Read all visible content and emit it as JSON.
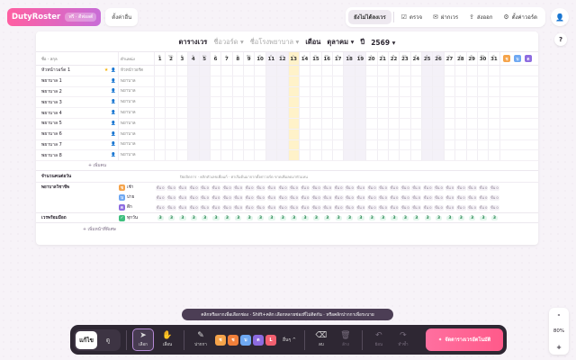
{
  "app": {
    "brand": "DutyRoster",
    "badge": "ฟรี · ดีฟอลต์",
    "settings": "ตั้งค่าอื่น"
  },
  "nav": [
    {
      "label": "ยังไม่ได้ลงเวร",
      "icon": "",
      "active": true
    },
    {
      "label": "ตรวจ",
      "icon": "check-icon"
    },
    {
      "label": "ฝากเวร",
      "icon": "inbox-icon"
    },
    {
      "label": "ส่งออก",
      "icon": "export-icon"
    },
    {
      "label": "ตั้งค่าวอร์ด",
      "icon": "gear-icon"
    }
  ],
  "help": "?",
  "title": {
    "label": "ตารางเวร",
    "ward": "ชื่อวอร์ด",
    "hospital": "ชื่อโรงพยาบาล",
    "month_label": "เดือน",
    "month": "ตุลาคม",
    "year_label": "ปี",
    "year": "2569"
  },
  "grid": {
    "col_name": "ชื่อ - สกุล",
    "col_position": "ตำแหน่ง",
    "today_index": 12,
    "days": [
      {
        "w": "พ.",
        "d": "1"
      },
      {
        "w": "พฤ.",
        "d": "2"
      },
      {
        "w": "ศ.",
        "d": "3"
      },
      {
        "w": "ส.",
        "d": "4",
        "we": true
      },
      {
        "w": "อา.",
        "d": "5",
        "we": true
      },
      {
        "w": "จ.",
        "d": "6"
      },
      {
        "w": "อ.",
        "d": "7"
      },
      {
        "w": "พ.",
        "d": "8"
      },
      {
        "w": "พฤ.",
        "d": "9"
      },
      {
        "w": "ศ.",
        "d": "10"
      },
      {
        "w": "ส.",
        "d": "11",
        "we": true
      },
      {
        "w": "อา.",
        "d": "12",
        "we": true
      },
      {
        "w": "จ.",
        "d": "13"
      },
      {
        "w": "อ.",
        "d": "14"
      },
      {
        "w": "พ.",
        "d": "15"
      },
      {
        "w": "พฤ.",
        "d": "16"
      },
      {
        "w": "ศ.",
        "d": "17"
      },
      {
        "w": "ส.",
        "d": "18",
        "we": true
      },
      {
        "w": "อา.",
        "d": "19",
        "we": true
      },
      {
        "w": "จ.",
        "d": "20"
      },
      {
        "w": "อ.",
        "d": "21"
      },
      {
        "w": "พ.",
        "d": "22"
      },
      {
        "w": "พฤ.",
        "d": "23"
      },
      {
        "w": "ศ.",
        "d": "24"
      },
      {
        "w": "ส.",
        "d": "25",
        "we": true
      },
      {
        "w": "อา.",
        "d": "26",
        "we": true
      },
      {
        "w": "จ.",
        "d": "27"
      },
      {
        "w": "อ.",
        "d": "28"
      },
      {
        "w": "พ.",
        "d": "29"
      },
      {
        "w": "พฤ.",
        "d": "30"
      },
      {
        "w": "ศ.",
        "d": "31"
      }
    ],
    "summary": [
      {
        "label": "ช",
        "color": "#f5a34a"
      },
      {
        "label": "บ",
        "color": "#6fa8f2"
      },
      {
        "label": "ด",
        "color": "#8d6be0"
      }
    ],
    "staff": [
      {
        "name": "หัวหน้าวอร์ด 1",
        "position": "หัวหน้าวอร์ด",
        "star": true
      },
      {
        "name": "พยาบาล 1",
        "position": "พยาบาล"
      },
      {
        "name": "พยาบาล 2",
        "position": "พยาบาล"
      },
      {
        "name": "พยาบาล 3",
        "position": "พยาบาล"
      },
      {
        "name": "พยาบาล 4",
        "position": "พยาบาล"
      },
      {
        "name": "พยาบาล 5",
        "position": "พยาบาล"
      },
      {
        "name": "พยาบาล 6",
        "position": "พยาบาล"
      },
      {
        "name": "พยาบาล 7",
        "position": "พยาบาล"
      },
      {
        "name": "พยาบาล 8",
        "position": "พยาบาล"
      }
    ],
    "add_staff": "+ เพิ่มคน",
    "coverage_title": "จำนวนคนต่อวัน",
    "coverage_note": "ปิดเปิดการ · คลิกตัวเลขเพื่อแก้ · ค่าเริ่มต้นมาจากตั้งค่าวอร์ด ขาดเพิ่มลดมาหัวแหน",
    "coverage_group": "พยาบาลวิชาชีพ",
    "coverage_rows": [
      {
        "label": "เช้า",
        "short": "ช",
        "color": "#f5a34a"
      },
      {
        "label": "บ่าย",
        "short": "บ",
        "color": "#6fa8f2"
      },
      {
        "label": "ดึก",
        "short": "ด",
        "color": "#8d6be0"
      }
    ],
    "coverage_cell": "ขั้น 0",
    "total_label": "เวรพร้อมมือถ",
    "total_sub": "ทุกวัน",
    "total_cell": "3",
    "add_week": "+ เพิ่มหน้าที่พิเศษ"
  },
  "tooltip": "คลิกหรือลากเพื่อเลือกช่อง · Shift+คลิก เลือกหลายช่องที่ไม่ติดกัน · หรือคลิกปากกาเพื่อระบาย",
  "toolbar": {
    "mode_edit": "แก้ไข",
    "mode_view": "ดู",
    "select": "เลือก",
    "pan": "เลื่อน",
    "pen": "ปากกา",
    "shifts": [
      {
        "label": "ช",
        "color": "#f5a34a"
      },
      {
        "label": "ช",
        "color": "#f07f3a"
      },
      {
        "label": "บ",
        "color": "#6fa8f2"
      },
      {
        "label": "ด",
        "color": "#8d6be0"
      },
      {
        "label": "L",
        "color": "#f26070"
      }
    ],
    "more": "อื่นๆ ^",
    "erase": "ลบ",
    "clear": "ล้าง",
    "undo": "ย้อน",
    "redo": "ทำซ้ำ",
    "cta": "จัดตารางเวรอัตโนมัติ"
  },
  "zoom": {
    "minus": "-",
    "value": "80%",
    "plus": "+"
  }
}
